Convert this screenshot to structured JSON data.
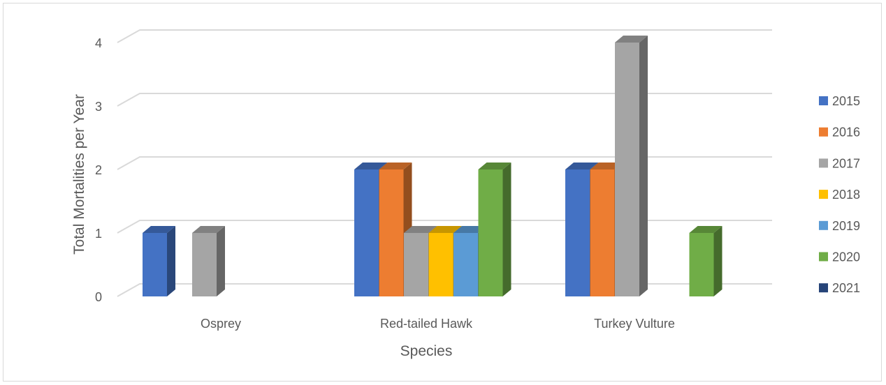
{
  "chart_data": {
    "type": "bar",
    "title": "",
    "xlabel": "Species",
    "ylabel": "Total Mortalities per Year",
    "ylim": [
      0,
      4
    ],
    "yticks": [
      "0",
      "1",
      "2",
      "3",
      "4"
    ],
    "categories": [
      "Osprey",
      "Red-tailed Hawk",
      "Turkey Vulture"
    ],
    "series": [
      {
        "name": "2015",
        "color": "#4472C4",
        "values": [
          1,
          2,
          2
        ]
      },
      {
        "name": "2016",
        "color": "#ED7D31",
        "values": [
          null,
          2,
          2
        ]
      },
      {
        "name": "2017",
        "color": "#A5A5A5",
        "values": [
          1,
          1,
          4
        ]
      },
      {
        "name": "2018",
        "color": "#FFC000",
        "values": [
          null,
          1,
          null
        ]
      },
      {
        "name": "2019",
        "color": "#5B9BD5",
        "values": [
          null,
          1,
          null
        ]
      },
      {
        "name": "2020",
        "color": "#70AD47",
        "values": [
          null,
          2,
          1
        ]
      },
      {
        "name": "2021",
        "color": "#264478",
        "values": [
          null,
          null,
          null
        ]
      }
    ],
    "grid": true,
    "legend": "right",
    "style": "3d-clustered-column"
  }
}
